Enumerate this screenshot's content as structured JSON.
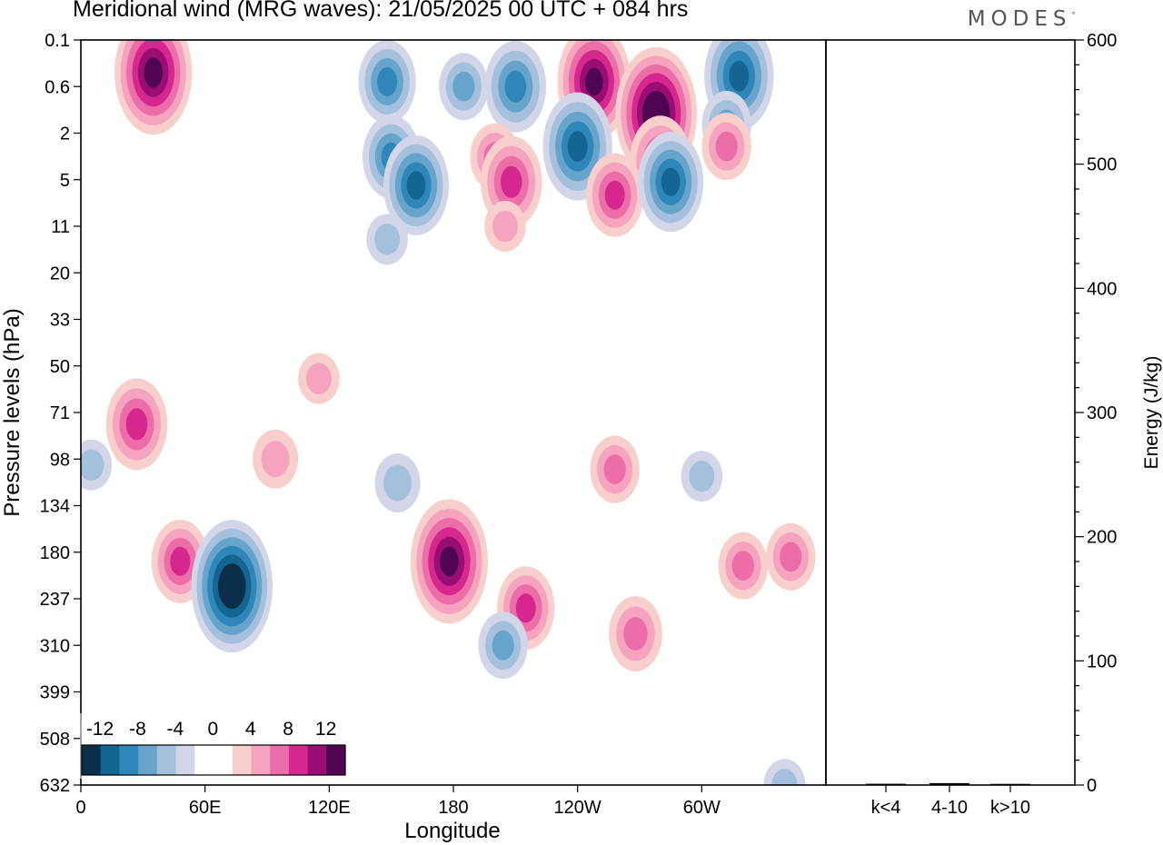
{
  "header": {
    "title": "Meridional wind (MRG waves):  21/05/2025  00 UTC  + 084 hrs",
    "brand": "MODES",
    "brand_mark": "°"
  },
  "chart_data": [
    {
      "type": "heatmap",
      "title": "Meridional wind (MRG waves):  21/05/2025  00 UTC  + 084 hrs",
      "xlabel": "Longitude",
      "ylabel": "Pressure levels (hPa)",
      "x_ticks": [
        "0",
        "60E",
        "120E",
        "180",
        "120W",
        "60W"
      ],
      "x_tick_values": [
        0,
        60,
        120,
        180,
        240,
        300
      ],
      "xlim": [
        0,
        360
      ],
      "y_ticks": [
        "0.1",
        "0.6",
        "2",
        "5",
        "11",
        "20",
        "33",
        "50",
        "71",
        "98",
        "134",
        "180",
        "237",
        "310",
        "399",
        "508",
        "632"
      ],
      "colorbar": {
        "labels": [
          "-12",
          "-8",
          "-4",
          "0",
          "4",
          "8",
          "12"
        ],
        "levels": [
          -14,
          -12,
          -10,
          -8,
          -6,
          -4,
          -2,
          0,
          2,
          4,
          6,
          8,
          10,
          12,
          14
        ],
        "colors": [
          "#0b2f4a",
          "#146591",
          "#2e86b9",
          "#67a4cb",
          "#a4c0dc",
          "#d2d6e8",
          "#ffffff",
          "#ffffff",
          "#f8cfcc",
          "#f5a3bf",
          "#ec6ea8",
          "#d6278f",
          "#9a0e74",
          "#4f0552"
        ],
        "placement": "bottom-left"
      },
      "features": [
        {
          "lon": 35,
          "lev": 0.35,
          "value": 13
        },
        {
          "lon": 148,
          "lev": 0.5,
          "value": -8
        },
        {
          "lon": 185,
          "lev": 0.6,
          "value": -6
        },
        {
          "lon": 210,
          "lev": 0.6,
          "value": -9
        },
        {
          "lon": 248,
          "lev": 0.5,
          "value": 12
        },
        {
          "lon": 278,
          "lev": 1.2,
          "value": 14
        },
        {
          "lon": 318,
          "lev": 0.4,
          "value": -11
        },
        {
          "lon": 312,
          "lev": 1.6,
          "value": -6
        },
        {
          "lon": 240,
          "lev": 2.6,
          "value": -11
        },
        {
          "lon": 200,
          "lev": 3.2,
          "value": 6
        },
        {
          "lon": 280,
          "lev": 3.5,
          "value": 9
        },
        {
          "lon": 312,
          "lev": 2.6,
          "value": 6
        },
        {
          "lon": 150,
          "lev": 3.2,
          "value": -8
        },
        {
          "lon": 258,
          "lev": 6.5,
          "value": 8
        },
        {
          "lon": 285,
          "lev": 5.2,
          "value": -10
        },
        {
          "lon": 162,
          "lev": 5.5,
          "value": -10
        },
        {
          "lon": 208,
          "lev": 5.2,
          "value": 9
        },
        {
          "lon": 205,
          "lev": 11,
          "value": 4
        },
        {
          "lon": 148,
          "lev": 13,
          "value": -4
        },
        {
          "lon": 27,
          "lev": 77,
          "value": 9
        },
        {
          "lon": 48,
          "lev": 190,
          "value": 8
        },
        {
          "lon": 73,
          "lev": 220,
          "value": -14
        },
        {
          "lon": 178,
          "lev": 190,
          "value": 13
        },
        {
          "lon": 215,
          "lev": 250,
          "value": 8
        },
        {
          "lon": 204,
          "lev": 310,
          "value": -6
        },
        {
          "lon": 268,
          "lev": 290,
          "value": 7
        },
        {
          "lon": 258,
          "lev": 105,
          "value": 6
        },
        {
          "lon": 320,
          "lev": 195,
          "value": 6
        },
        {
          "lon": 343,
          "lev": 185,
          "value": 6
        },
        {
          "lon": 153,
          "lev": 115,
          "value": -5
        },
        {
          "lon": 94,
          "lev": 98,
          "value": 5
        },
        {
          "lon": 5,
          "lev": 102,
          "value": -4
        },
        {
          "lon": 300,
          "lev": 110,
          "value": -4
        },
        {
          "lon": 340,
          "lev": 630,
          "value": -4
        },
        {
          "lon": 115,
          "lev": 55,
          "value": 4
        }
      ]
    },
    {
      "type": "bar",
      "ylabel": "Energy (J/kg)",
      "categories": [
        "k<4",
        "4-10",
        "k>10"
      ],
      "values": [
        0.3,
        0.8,
        0.2
      ],
      "ylim": [
        0,
        600
      ],
      "y_ticks": [
        "0",
        "100",
        "200",
        "300",
        "400",
        "500",
        "600"
      ],
      "y_tick_values": [
        0,
        100,
        200,
        300,
        400,
        500,
        600
      ]
    }
  ]
}
